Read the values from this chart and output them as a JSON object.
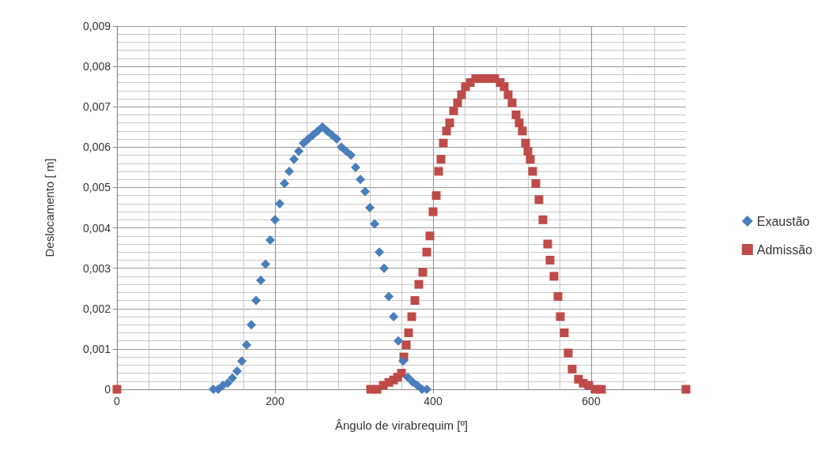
{
  "chart_data": {
    "type": "scatter",
    "xlabel": "Ângulo de virabrequim [º]",
    "ylabel": "Deslocamento [ m]",
    "xlim": [
      0,
      720
    ],
    "xticks": [
      0,
      200,
      400,
      600
    ],
    "ylim": [
      0,
      0.009
    ],
    "yticks": [
      {
        "value": 0,
        "label": "0"
      },
      {
        "value": 0.001,
        "label": "0,001"
      },
      {
        "value": 0.002,
        "label": "0,002"
      },
      {
        "value": 0.003,
        "label": "0,003"
      },
      {
        "value": 0.004,
        "label": "0,004"
      },
      {
        "value": 0.005,
        "label": "0,005"
      },
      {
        "value": 0.006,
        "label": "0,006"
      },
      {
        "value": 0.007,
        "label": "0,007"
      },
      {
        "value": 0.008,
        "label": "0,008"
      },
      {
        "value": 0.009,
        "label": "0,009"
      }
    ],
    "grid": true,
    "legend": "right",
    "series": [
      {
        "name": "Exaustão",
        "color": "#4a7ebb",
        "marker": "diamond",
        "x": [
          122,
          128,
          134,
          140,
          146,
          152,
          158,
          164,
          170,
          176,
          182,
          188,
          194,
          200,
          206,
          212,
          218,
          224,
          230,
          236,
          242,
          248,
          254,
          260,
          266,
          272,
          278,
          284,
          290,
          296,
          302,
          308,
          314,
          320,
          326,
          332,
          338,
          344,
          350,
          356,
          362,
          368,
          374,
          380,
          386,
          392
        ],
        "values": [
          0,
          0,
          0.0001,
          0.00015,
          0.00028,
          0.00045,
          0.0007,
          0.0011,
          0.0016,
          0.0022,
          0.0027,
          0.0031,
          0.0037,
          0.0042,
          0.0046,
          0.0051,
          0.0054,
          0.0057,
          0.0059,
          0.0061,
          0.0062,
          0.0063,
          0.0064,
          0.0065,
          0.0064,
          0.0063,
          0.0062,
          0.006,
          0.0059,
          0.0058,
          0.0055,
          0.0052,
          0.0049,
          0.0045,
          0.0041,
          0.0034,
          0.003,
          0.0023,
          0.0018,
          0.0012,
          0.0007,
          0.0003,
          0.00018,
          0.0001,
          0,
          0
        ]
      },
      {
        "name": "Admissão",
        "color": "#be4b48",
        "marker": "square",
        "x": [
          0,
          321,
          329,
          337,
          344,
          350,
          355,
          360,
          363,
          366,
          369,
          373,
          377,
          382,
          387,
          392,
          396,
          400,
          404,
          407,
          410,
          413,
          417,
          421,
          426,
          431,
          436,
          441,
          447,
          454,
          462,
          470,
          478,
          485,
          490,
          495,
          500,
          505,
          509,
          513,
          517,
          520,
          523,
          526,
          530,
          534,
          539,
          545,
          548,
          553,
          558,
          561,
          566,
          571,
          576,
          584,
          590,
          597,
          605,
          613,
          720
        ],
        "values": [
          0,
          0,
          0,
          0.0001,
          0.00017,
          0.00023,
          0.0003,
          0.0004,
          0.0008,
          0.0011,
          0.0014,
          0.0018,
          0.0022,
          0.0026,
          0.0029,
          0.0034,
          0.0038,
          0.0044,
          0.0048,
          0.0054,
          0.0057,
          0.0061,
          0.0064,
          0.0066,
          0.0069,
          0.0071,
          0.0073,
          0.0075,
          0.0076,
          0.0077,
          0.0077,
          0.0077,
          0.0077,
          0.0076,
          0.0075,
          0.0073,
          0.0071,
          0.0068,
          0.0066,
          0.0064,
          0.0061,
          0.0059,
          0.0057,
          0.0054,
          0.0051,
          0.0047,
          0.0042,
          0.0036,
          0.0032,
          0.0028,
          0.0023,
          0.0018,
          0.0014,
          0.0009,
          0.0005,
          0.00025,
          0.00015,
          0.0001,
          0,
          0,
          0
        ]
      }
    ]
  }
}
